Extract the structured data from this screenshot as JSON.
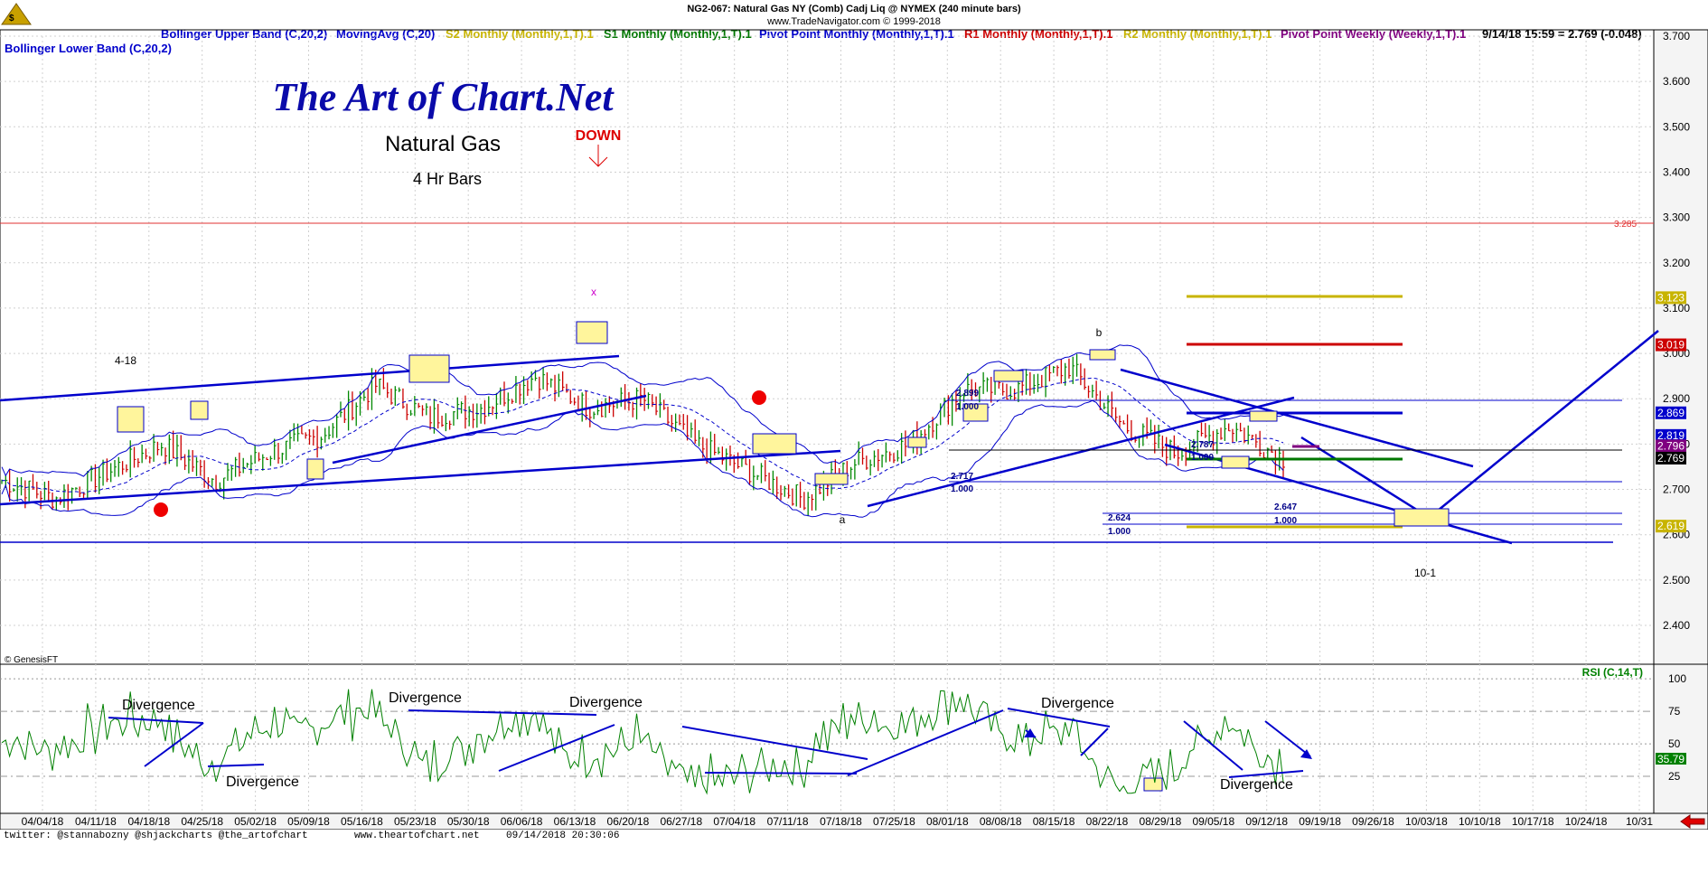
{
  "header": {
    "line1": "NG2-067:  Natural Gas NY (Comb) Cadj Liq @ NYMEX  (240 minute bars)",
    "line2": "www.TradeNavigator.com © 1999-2018"
  },
  "legend": [
    {
      "text": "Bollinger Upper Band (C,20,2)",
      "color": "#0000cc"
    },
    {
      "text": "MovingAvg (C,20)",
      "color": "#0000cc"
    },
    {
      "text": "S2 Monthly (Monthly,1,T).1",
      "color": "#c8b400"
    },
    {
      "text": "S1 Monthly (Monthly,1,T).1",
      "color": "#007700"
    },
    {
      "text": "Pivot Point Monthly (Monthly,1,T).1",
      "color": "#0000cc"
    },
    {
      "text": "R1 Monthly (Monthly,1,T).1",
      "color": "#cc0000"
    },
    {
      "text": "R2 Monthly (Monthly,1,T).1",
      "color": "#c8b400"
    },
    {
      "text": "Pivot Point Weekly (Weekly,1,T).1",
      "color": "#800080"
    },
    {
      "text": "9/14/18 15:59 = 2.769 (-0.048)",
      "color": "#000000"
    }
  ],
  "legend2": {
    "text": "Bollinger Lower Band (C,20,2)",
    "color": "#0000cc"
  },
  "branding": {
    "logo": "The Art of Chart.Net",
    "title": "Natural Gas",
    "subtitle": "4 Hr Bars",
    "source": "© GenesisFT"
  },
  "annotations": {
    "down": "DOWN",
    "x_label": "x",
    "b_label": "b",
    "a_label": "a",
    "apr18": "4-18",
    "oct1": "10-1",
    "r2899": "2.899",
    "r1000_1": "1.000",
    "r2717": "2.717",
    "r1000_2": "1.000",
    "r2787": "2.787",
    "r1000_3": "1.000",
    "r2624": "2.624",
    "r1000_4": "1.000",
    "r2647": "2.647",
    "r1000_5": "1.000",
    "red_level": "3.285"
  },
  "rsi": {
    "label": "RSI (C,14,T)",
    "ticks": [
      "100",
      "75",
      "50",
      "25"
    ],
    "current": "35.79",
    "divergence": [
      "Divergence",
      "Divergence",
      "Divergence",
      "Divergence",
      "Divergence",
      "Divergence"
    ]
  },
  "price_badges": [
    {
      "value": "3.123",
      "bg": "#c8b400",
      "fg": "#ffffff"
    },
    {
      "value": "3.019",
      "bg": "#cc0000",
      "fg": "#ffffff"
    },
    {
      "value": "2.869",
      "bg": "#0000cc",
      "fg": "#ffffff"
    },
    {
      "value": "2.819",
      "bg": "#0000cc",
      "fg": "#ffffff"
    },
    {
      "value": "2.796",
      "bg": "#800080",
      "fg": "#ffffff"
    },
    {
      "value": "2.769",
      "bg": "#000000",
      "fg": "#ffffff"
    },
    {
      "value": "2.619",
      "bg": "#c8b400",
      "fg": "#ffffff"
    }
  ],
  "footer": {
    "twitter": "twitter: @stannabozny @shjackcharts @the_artofchart",
    "website": "www.theartofchart.net",
    "timestamp": "09/14/2018 20:30:06"
  },
  "colors": {
    "price_axis_bg": "#f4f4f4",
    "up_bar": "#008800",
    "down_bar": "#cc0000",
    "band": "#0000cc",
    "rsi": "#008000",
    "annot": "#0000cc"
  },
  "chart_data": {
    "type": "bar",
    "title": "Natural Gas",
    "subtitle": "4 Hr Bars",
    "ylim": [
      2.3,
      3.7
    ],
    "y_ticks": [
      3.7,
      3.6,
      3.5,
      3.4,
      3.3,
      3.2,
      3.1,
      3.0,
      2.9,
      2.8,
      2.7,
      2.6,
      2.5,
      2.4
    ],
    "x_tick_labels": [
      "04/04/18",
      "04/11/18",
      "04/18/18",
      "04/25/18",
      "05/02/18",
      "05/09/18",
      "05/16/18",
      "05/23/18",
      "05/30/18",
      "06/06/18",
      "06/13/18",
      "06/20/18",
      "06/27/18",
      "07/04/18",
      "07/11/18",
      "07/18/18",
      "07/25/18",
      "08/01/18",
      "08/08/18",
      "08/15/18",
      "08/22/18",
      "08/29/18",
      "09/05/18",
      "09/12/18",
      "09/19/18",
      "09/26/18",
      "10/03/18",
      "10/10/18",
      "10/17/18",
      "10/24/18",
      "10/31"
    ],
    "price_path": [
      {
        "date": "04/04/18",
        "close": 2.72
      },
      {
        "date": "04/11/18",
        "close": 2.68
      },
      {
        "date": "04/18/18",
        "close": 2.74
      },
      {
        "date": "04/25/18",
        "close": 2.8
      },
      {
        "date": "05/02/18",
        "close": 2.72
      },
      {
        "date": "05/09/18",
        "close": 2.78
      },
      {
        "date": "05/16/18",
        "close": 2.82
      },
      {
        "date": "05/23/18",
        "close": 2.93
      },
      {
        "date": "05/30/18",
        "close": 2.86
      },
      {
        "date": "06/06/18",
        "close": 2.88
      },
      {
        "date": "06/13/18",
        "close": 2.95
      },
      {
        "date": "06/20/18",
        "close": 2.88
      },
      {
        "date": "06/27/18",
        "close": 2.9
      },
      {
        "date": "07/04/18",
        "close": 2.8
      },
      {
        "date": "07/11/18",
        "close": 2.74
      },
      {
        "date": "07/18/18",
        "close": 2.68
      },
      {
        "date": "07/25/18",
        "close": 2.76
      },
      {
        "date": "08/01/18",
        "close": 2.8
      },
      {
        "date": "08/08/18",
        "close": 2.92
      },
      {
        "date": "08/15/18",
        "close": 2.92
      },
      {
        "date": "08/22/18",
        "close": 2.97
      },
      {
        "date": "08/29/18",
        "close": 2.84
      },
      {
        "date": "09/05/18",
        "close": 2.78
      },
      {
        "date": "09/12/18",
        "close": 2.84
      },
      {
        "date": "09/14/18",
        "close": 2.769
      }
    ],
    "levels": [
      {
        "name": "R2 Monthly",
        "value": 3.123
      },
      {
        "name": "R1 Monthly",
        "value": 3.019
      },
      {
        "name": "Pivot Point Monthly",
        "value": 2.869
      },
      {
        "name": "Pivot Point Weekly",
        "value": 2.796
      },
      {
        "name": "S1 Monthly",
        "value": 2.769
      },
      {
        "name": "S2 Monthly",
        "value": 2.619
      },
      {
        "name": "red line",
        "value": 3.285
      }
    ],
    "rsi_ylim": [
      0,
      100
    ],
    "grid": true
  }
}
